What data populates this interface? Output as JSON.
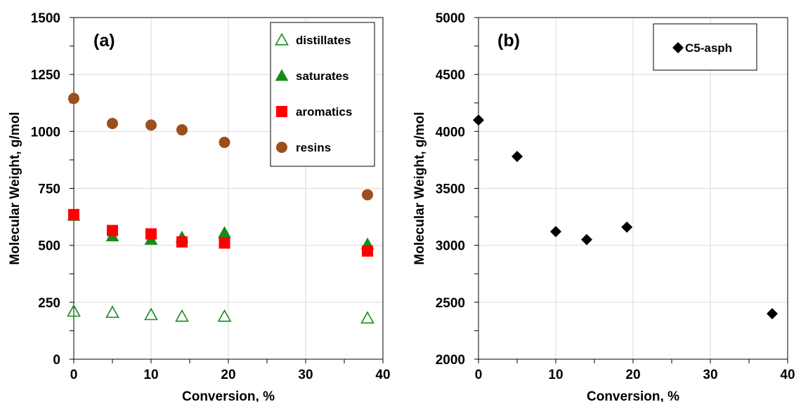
{
  "chart_data": [
    {
      "type": "scatter",
      "panel_label": "(a)",
      "xlabel": "Conversion, %",
      "ylabel": "Molecular Weight, g/mol",
      "xlim": [
        0,
        40
      ],
      "ylim": [
        0,
        1500
      ],
      "xticks": [
        0,
        10,
        20,
        30,
        40
      ],
      "yticks": [
        0,
        250,
        500,
        750,
        1000,
        1250,
        1500
      ],
      "grid": true,
      "legend_position": "top-right",
      "series": [
        {
          "name": "distillates",
          "marker": "triangle-open",
          "color": "#1a8a1a",
          "x": [
            0,
            5,
            10,
            14,
            19.5,
            38
          ],
          "y": [
            210,
            205,
            195,
            188,
            188,
            180
          ]
        },
        {
          "name": "saturates",
          "marker": "triangle",
          "color": "#1a8a1a",
          "x": [
            0,
            5,
            10,
            14,
            19.5,
            38
          ],
          "y": [
            630,
            540,
            525,
            535,
            555,
            505
          ]
        },
        {
          "name": "aromatics",
          "marker": "square",
          "color": "#ff0000",
          "x": [
            0,
            5,
            10,
            14,
            19.5,
            38
          ],
          "y": [
            635,
            565,
            550,
            515,
            510,
            475
          ]
        },
        {
          "name": "resins",
          "marker": "circle",
          "color": "#9b4f1c",
          "x": [
            0,
            5,
            10,
            14,
            19.5,
            38
          ],
          "y": [
            1145,
            1035,
            1028,
            1007,
            952,
            722
          ]
        }
      ]
    },
    {
      "type": "scatter",
      "panel_label": "(b)",
      "xlabel": "Conversion, %",
      "ylabel": "Molecular Weight, g/mol",
      "xlim": [
        0,
        40
      ],
      "ylim": [
        2000,
        5000
      ],
      "xticks": [
        0,
        10,
        20,
        30,
        40
      ],
      "yticks": [
        2000,
        2500,
        3000,
        3500,
        4000,
        4500,
        5000
      ],
      "grid": true,
      "legend_position": "top-right",
      "series": [
        {
          "name": "C5-asph",
          "marker": "diamond",
          "color": "#000000",
          "x": [
            0,
            5,
            10,
            14,
            19.2,
            38
          ],
          "y": [
            4100,
            3780,
            3120,
            3050,
            3160,
            2400
          ]
        }
      ]
    }
  ]
}
